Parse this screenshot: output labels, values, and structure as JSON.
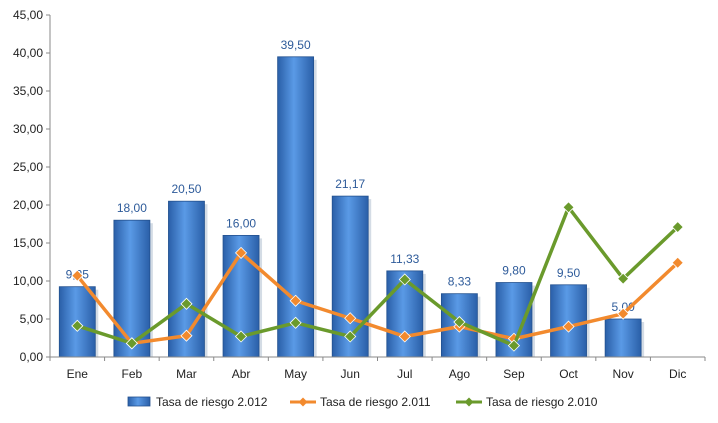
{
  "chart_data": {
    "type": "bar",
    "categories": [
      "Ene",
      "Feb",
      "Mar",
      "Abr",
      "May",
      "Jun",
      "Jul",
      "Ago",
      "Sep",
      "Oct",
      "Nov",
      "Dic"
    ],
    "ylim": [
      0,
      45
    ],
    "yticks": [
      "0,00",
      "5,00",
      "10,00",
      "15,00",
      "20,00",
      "25,00",
      "30,00",
      "35,00",
      "40,00",
      "45,00"
    ],
    "grid": false,
    "legend": "bottom",
    "series": [
      {
        "name": "Tasa de riesgo 2.012",
        "kind": "bar",
        "color": "#3f7fd0",
        "values": [
          9.25,
          18.0,
          20.5,
          16.0,
          39.5,
          21.17,
          11.33,
          8.33,
          9.8,
          9.5,
          5.0,
          null
        ],
        "labels": [
          "9,25",
          "18,00",
          "20,50",
          "16,00",
          "39,50",
          "21,17",
          "11,33",
          "8,33",
          "9,80",
          "9,50",
          "5,00",
          ""
        ]
      },
      {
        "name": "Tasa de riesgo 2.011",
        "kind": "line",
        "color": "#f28a2e",
        "values": [
          10.7,
          1.8,
          2.8,
          13.7,
          7.4,
          5.1,
          2.7,
          4.0,
          2.4,
          4.0,
          5.7,
          12.4
        ]
      },
      {
        "name": "Tasa de riesgo 2.010",
        "kind": "line",
        "color": "#6a9a2c",
        "values": [
          4.1,
          1.8,
          7.0,
          2.7,
          4.5,
          2.7,
          10.2,
          4.6,
          1.5,
          19.7,
          10.3,
          17.1
        ]
      }
    ]
  }
}
